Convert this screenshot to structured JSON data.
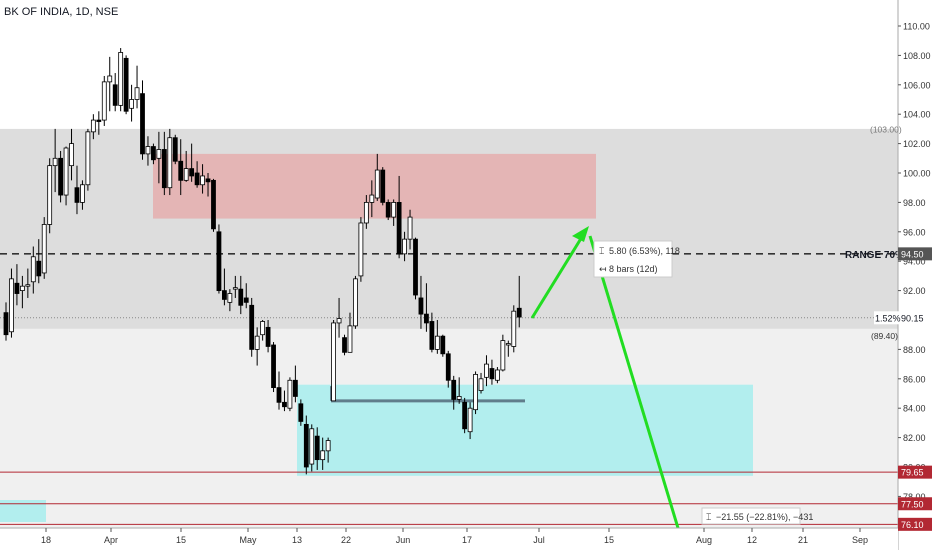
{
  "header": {
    "symbol_title": "BK OF INDIA, 1D, NSE"
  },
  "chart_data": {
    "type": "candlestick",
    "title": "BK OF INDIA, 1D, NSE",
    "ylim": [
      76.2,
      111.7
    ],
    "y_ticks": [
      "110.00",
      "108.00",
      "106.00",
      "104.00",
      "102.00",
      "100.00",
      "98.00",
      "96.00",
      "94.00",
      "92.00",
      "90.00",
      "88.00",
      "86.00",
      "84.00",
      "82.00",
      "80.00",
      "78.00",
      "76.00"
    ],
    "x_ticks": [
      "18",
      "Apr",
      "15",
      "May",
      "13",
      "22",
      "Jun",
      "17",
      "Jul",
      "15",
      "Aug",
      "12",
      "21",
      "Sep"
    ],
    "candles": [
      [
        90.5,
        91.2,
        88.6,
        89.0
      ],
      [
        89.2,
        93.5,
        88.8,
        92.8
      ],
      [
        92.5,
        93.8,
        91.0,
        91.8
      ],
      [
        92.0,
        93.0,
        90.8,
        92.3
      ],
      [
        92.3,
        93.5,
        91.5,
        92.4
      ],
      [
        92.6,
        95.0,
        91.8,
        94.3
      ],
      [
        94.0,
        95.5,
        92.5,
        93.0
      ],
      [
        93.2,
        97.0,
        92.8,
        96.5
      ],
      [
        96.5,
        101.0,
        95.9,
        100.5
      ],
      [
        100.5,
        103.0,
        98.7,
        101.0
      ],
      [
        101.0,
        101.5,
        98.0,
        98.5
      ],
      [
        98.5,
        101.8,
        97.8,
        101.7
      ],
      [
        100.5,
        103.0,
        99.5,
        102.0
      ],
      [
        99.0,
        100.5,
        97.2,
        98.0
      ],
      [
        98.0,
        99.5,
        97.5,
        99.2
      ],
      [
        99.2,
        103.0,
        98.8,
        102.8
      ],
      [
        102.8,
        104.0,
        102.3,
        103.6
      ],
      [
        103.6,
        104.2,
        102.6,
        103.5
      ],
      [
        103.6,
        106.6,
        103.2,
        106.2
      ],
      [
        106.2,
        107.9,
        104.2,
        106.6
      ],
      [
        106.0,
        106.8,
        104.2,
        104.6
      ],
      [
        104.6,
        108.5,
        104.2,
        108.2
      ],
      [
        107.8,
        108.0,
        104.0,
        104.2
      ],
      [
        104.4,
        106.0,
        103.5,
        105.0
      ],
      [
        105.0,
        107.3,
        104.4,
        105.8
      ],
      [
        105.4,
        106.3,
        100.9,
        101.3
      ],
      [
        101.3,
        102.5,
        100.5,
        101.8
      ],
      [
        101.8,
        102.0,
        100.6,
        100.9
      ],
      [
        101.0,
        102.8,
        99.3,
        101.6
      ],
      [
        101.6,
        102.8,
        98.5,
        99.0
      ],
      [
        99.0,
        103.0,
        98.5,
        102.4
      ],
      [
        102.4,
        102.6,
        100.6,
        100.8
      ],
      [
        100.8,
        102.3,
        98.5,
        99.5
      ],
      [
        99.5,
        101.5,
        99.4,
        100.3
      ],
      [
        100.3,
        102.0,
        99.4,
        99.8
      ],
      [
        100.0,
        100.8,
        99.0,
        99.2
      ],
      [
        99.2,
        100.6,
        98.6,
        99.8
      ],
      [
        99.6,
        100.0,
        98.4,
        99.4
      ],
      [
        99.5,
        99.6,
        96.0,
        96.2
      ],
      [
        96.0,
        96.5,
        91.8,
        92.0
      ],
      [
        92.0,
        93.5,
        91.0,
        91.4
      ],
      [
        91.2,
        92.1,
        90.6,
        91.8
      ],
      [
        92.1,
        93.0,
        91.5,
        92.2
      ],
      [
        92.1,
        93.0,
        90.4,
        91.0
      ],
      [
        91.5,
        92.5,
        90.8,
        91.2
      ],
      [
        91.0,
        91.5,
        87.5,
        88.0
      ],
      [
        88.0,
        89.5,
        86.9,
        88.9
      ],
      [
        89.0,
        90.0,
        88.6,
        89.9
      ],
      [
        89.5,
        90.0,
        87.8,
        88.2
      ],
      [
        88.3,
        88.5,
        85.1,
        85.4
      ],
      [
        85.4,
        86.5,
        83.9,
        84.4
      ],
      [
        84.4,
        85.2,
        83.8,
        84.1
      ],
      [
        84.0,
        86.1,
        83.8,
        85.9
      ],
      [
        85.9,
        86.9,
        84.4,
        84.8
      ],
      [
        84.3,
        84.6,
        82.8,
        83.1
      ],
      [
        82.9,
        83.5,
        79.5,
        80.0
      ],
      [
        80.2,
        82.9,
        79.7,
        82.6
      ],
      [
        82.1,
        82.7,
        79.8,
        80.5
      ],
      [
        80.5,
        82.0,
        79.8,
        81.1
      ],
      [
        81.1,
        82.0,
        80.3,
        81.8
      ],
      [
        84.5,
        90.0,
        84.5,
        89.8
      ],
      [
        89.8,
        91.5,
        88.8,
        90.1
      ],
      [
        88.8,
        89.0,
        87.6,
        87.8
      ],
      [
        87.8,
        90.5,
        87.8,
        89.6
      ],
      [
        89.6,
        93.0,
        89.4,
        92.8
      ],
      [
        93.0,
        97.0,
        92.6,
        96.6
      ],
      [
        96.6,
        98.5,
        96.2,
        98.0
      ],
      [
        98.0,
        99.5,
        97.0,
        98.5
      ],
      [
        98.3,
        101.3,
        98.1,
        100.2
      ],
      [
        100.2,
        100.4,
        97.8,
        98.0
      ],
      [
        98.0,
        98.2,
        96.8,
        97.0
      ],
      [
        97.0,
        98.2,
        96.4,
        98.0
      ],
      [
        98.0,
        99.8,
        94.2,
        94.5
      ],
      [
        94.5,
        96.0,
        94.0,
        95.5
      ],
      [
        95.5,
        97.5,
        94.8,
        97.0
      ],
      [
        95.5,
        95.6,
        91.4,
        91.7
      ],
      [
        91.5,
        93.0,
        89.4,
        90.4
      ],
      [
        90.4,
        92.5,
        89.2,
        89.8
      ],
      [
        89.9,
        90.5,
        87.8,
        88.0
      ],
      [
        88.0,
        90.0,
        87.7,
        88.9
      ],
      [
        88.9,
        89.0,
        87.5,
        87.7
      ],
      [
        87.7,
        87.9,
        85.4,
        85.9
      ],
      [
        85.9,
        86.2,
        83.9,
        84.6
      ],
      [
        84.6,
        86.1,
        84.3,
        84.8
      ],
      [
        84.4,
        84.7,
        82.3,
        82.6
      ],
      [
        82.4,
        84.4,
        81.9,
        84.0
      ],
      [
        83.9,
        86.5,
        83.6,
        86.3
      ],
      [
        85.2,
        86.4,
        85.0,
        86.0
      ],
      [
        86.1,
        87.6,
        85.5,
        87.0
      ],
      [
        86.7,
        87.3,
        85.6,
        86.0
      ],
      [
        85.9,
        86.8,
        85.7,
        86.6
      ],
      [
        86.6,
        89.0,
        86.5,
        88.6
      ],
      [
        88.3,
        88.6,
        87.5,
        88.4
      ],
      [
        88.2,
        91.0,
        87.8,
        90.6
      ],
      [
        90.8,
        93.0,
        89.5,
        90.2
      ]
    ],
    "zones": {
      "range_box": [
        89.4,
        103.0
      ],
      "supply_zone": [
        96.9,
        101.3
      ],
      "demand_zone": [
        79.4,
        85.6
      ]
    },
    "levels": [
      {
        "label": "RANGE 70%",
        "value": 94.5,
        "style": "dashed"
      },
      {
        "label": "79.65",
        "value": 79.65,
        "color": "#b22833"
      },
      {
        "label": "77.50",
        "value": 77.5,
        "color": "#b22833"
      },
      {
        "label": "76.10",
        "value": 76.1,
        "color": "#b22833"
      },
      {
        "label": "90.15",
        "value": 90.15,
        "style": "dotted"
      }
    ],
    "axis_labels": {
      "range_box_top": "(103.00)",
      "range_box_bottom": "(89.40)",
      "last_pct": "1.52%",
      "last_price": "90.15",
      "range_price": "94.50"
    },
    "annotations": {
      "range_label": "RANGE 70%",
      "measure_up_line1": "5.80 (6.53%), 118",
      "measure_up_line2": "8 bars (12d)",
      "measure_down": "−21.55 (−22.81%), −431"
    },
    "colors": {
      "up_candle": "#ffffff",
      "down_candle": "#000000",
      "arrow": "#22dd22",
      "supply": "#e4b5b5",
      "demand": "#b2eeee",
      "range": "#dddddd",
      "level": "#b22833"
    }
  }
}
